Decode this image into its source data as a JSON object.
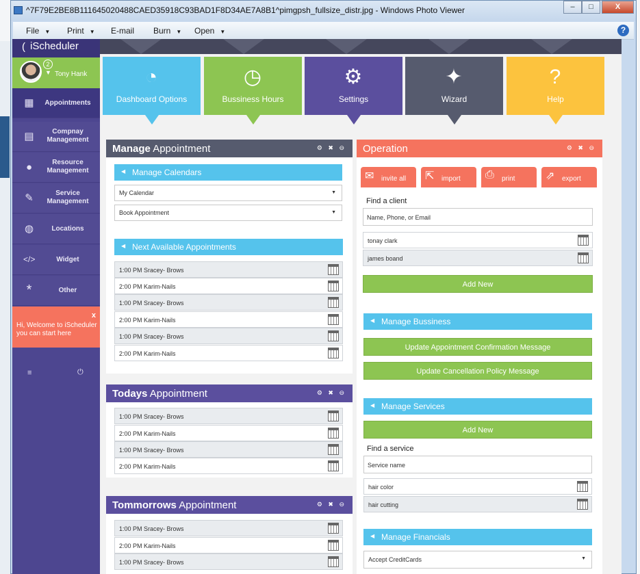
{
  "window": {
    "title": "^7F79E2BE8B111645020488CAED35918C93BAD1F8D34AE7A8B1^pimgpsh_fullsize_distr.jpg - Windows Photo Viewer",
    "minimize": "–",
    "maximize": "□",
    "close": "X"
  },
  "menubar": {
    "items": [
      "File",
      "Print",
      "E-mail",
      "Burn",
      "Open"
    ],
    "help": "?"
  },
  "app": {
    "logo": "iScheduler",
    "user": {
      "name": "Tony Hank",
      "notifications": "2"
    },
    "nav": [
      {
        "label": "Appointments"
      },
      {
        "label": "Compnay Management"
      },
      {
        "label": "Resource Management"
      },
      {
        "label": "Service Management"
      },
      {
        "label": "Locations"
      },
      {
        "label": "Widget"
      },
      {
        "label": "Other"
      }
    ],
    "welcome": "Hi, Welcome to iScheduler you can start here",
    "welcome_close": "x",
    "tiles": [
      {
        "label": "Dashboard Options",
        "color": "#55c3ec"
      },
      {
        "label": "Bussiness Hours",
        "color": "#8dc552"
      },
      {
        "label": "Settings",
        "color": "#5b4f9e"
      },
      {
        "label": "Wizard",
        "color": "#565b6e"
      },
      {
        "label": "Help",
        "color": "#fcc33e"
      }
    ],
    "manage_panel": {
      "title_bold": "Manage",
      "title_rest": "Appointment",
      "controls": "⚙ ✖ ⊖",
      "calendars_bar": "Manage Calendars",
      "select1": "My Calendar",
      "select2": "Book Appointment",
      "next_bar": "Next Available Appointments",
      "next_rows": [
        "1:00 PM Sracey- Brows",
        "2:00 PM Karim-Nails",
        "1:00 PM Sracey- Brows",
        "2:00 PM Karim-Nails",
        "1:00 PM Sracey- Brows",
        "2:00 PM Karim-Nails"
      ]
    },
    "today_panel": {
      "title_bold": "Todays",
      "title_rest": "Appointment",
      "rows": [
        "1:00 PM Sracey- Brows",
        "2:00 PM Karim-Nails",
        "1:00 PM Sracey- Brows",
        "2:00 PM Karim-Nails"
      ]
    },
    "tomorrow_panel": {
      "title_bold": "Tommorrows",
      "title_rest": "Appointment",
      "rows": [
        "1:00 PM Sracey- Brows",
        "2:00 PM Karim-Nails",
        "1:00 PM Sracey- Brows"
      ]
    },
    "operation_panel": {
      "title": "Operation",
      "buttons": [
        "invite all",
        "import",
        "print",
        "export"
      ],
      "find_client_label": "Find a client",
      "find_client_placeholder": "Name, Phone, or Email",
      "clients": [
        "tonay clark",
        "james boand"
      ],
      "add_new": "Add New",
      "business_bar": "Manage Bussiness",
      "update_confirmation": "Update Appointment Confirmation Message",
      "update_cancellation": "Update Cancellation Policy Message",
      "services_bar": "Manage Services",
      "add_new_service": "Add New",
      "find_service_label": "Find a service",
      "find_service_placeholder": "Service name",
      "services": [
        "hair color",
        "hair cutting"
      ],
      "financials_bar": "Manage Financials",
      "financials_select": "Accept CreditCards"
    }
  }
}
